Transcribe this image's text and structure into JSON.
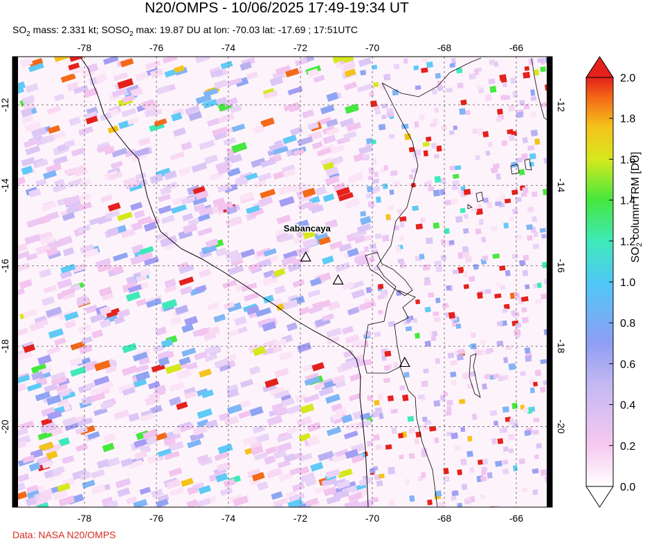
{
  "header": {
    "title": "N20/OMPS - 10/06/2025 17:49-19:34 UT",
    "subtitle_mass_prefix": "SO",
    "subtitle_mass_rest": " mass: 2.331 kt; SO",
    "subtitle_max_rest": " max: 19.87 DU at lon: -70.03 lat: -17.69 ; 17:51UTC"
  },
  "map": {
    "lon_range": [
      -80,
      -65
    ],
    "lat_range": [
      -22,
      -10.8
    ],
    "lon_ticks": [
      "-78",
      "-76",
      "-74",
      "-72",
      "-70",
      "-68",
      "-66"
    ],
    "lat_ticks": [
      "-12",
      "-14",
      "-16",
      "-18",
      "-20"
    ],
    "volcano_label": "Sabancaya",
    "volcanoes": [
      {
        "lon": -71.85,
        "lat": -15.78
      },
      {
        "lon": -70.95,
        "lat": -16.35
      },
      {
        "lon": -69.1,
        "lat": -18.4
      }
    ]
  },
  "colorbar": {
    "label": "SO2 column TRM [DU]",
    "label_prefix": "SO",
    "label_sub": "2",
    "label_rest": " column TRM [DU]",
    "ticks": [
      "2.0",
      "1.8",
      "1.6",
      "1.4",
      "1.2",
      "1.0",
      "0.8",
      "0.6",
      "0.4",
      "0.2",
      "0.0"
    ],
    "colors": [
      "#ffffff",
      "#f6c9f0",
      "#c3b8f2",
      "#8f9ef3",
      "#4fc8f6",
      "#3fe9b9",
      "#45e83e",
      "#d6e81d",
      "#f5c21b",
      "#f36a18",
      "#e4211c"
    ]
  },
  "credit": "Data: NASA N20/OMPS"
}
